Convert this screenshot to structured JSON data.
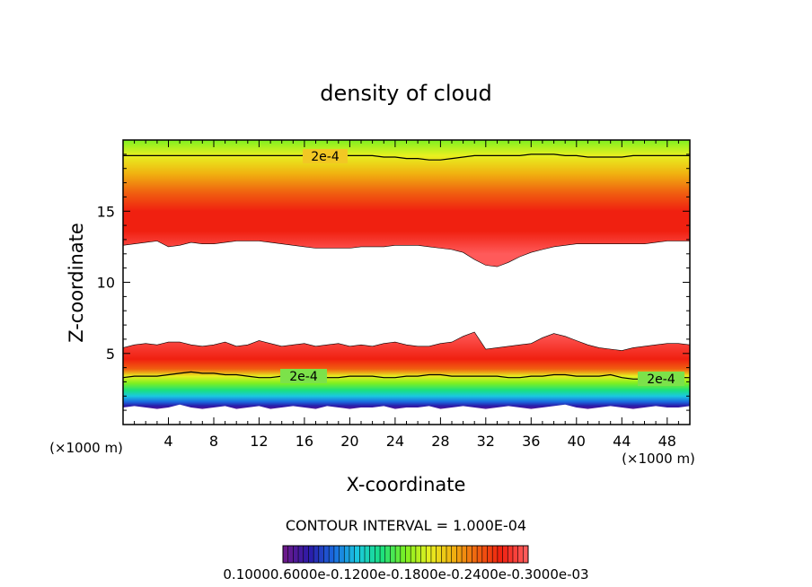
{
  "chart_data": {
    "type": "heatmap",
    "title": "density of cloud",
    "xlabel": "X-coordinate",
    "ylabel": "Z-coordinate",
    "x_unit": "(×1000 m)",
    "xlim": [
      0,
      50
    ],
    "ylim": [
      0,
      20
    ],
    "x_ticks": [
      4,
      8,
      12,
      16,
      20,
      24,
      28,
      32,
      36,
      40,
      44,
      48
    ],
    "y_ticks": [
      5,
      10,
      15
    ],
    "contour_interval_label": "CONTOUR INTERVAL = 1.000E-04",
    "contour_label": "2e-4",
    "colorbar_labels": [
      "0.1000",
      "0.6000e-4",
      "0.1200e-3",
      "0.1800e-3",
      "0.2400e-3",
      "0.3000e-3"
    ],
    "colorbar_label_text": "0.10000.6000e-0.1200e-0.1800e-0.2400e-0.3000e-03",
    "colormap": [
      "#6b1a8c",
      "#2a1aa8",
      "#1a6ae0",
      "#1ac8e0",
      "#1ae080",
      "#7ef020",
      "#e8f020",
      "#f0b010",
      "#f06010",
      "#f02010",
      "#ff5a5a"
    ],
    "upper_layer": {
      "bottom_z": [
        12.6,
        12.7,
        12.8,
        12.9,
        12.5,
        12.6,
        12.8,
        12.7,
        12.7,
        12.8,
        12.9,
        12.9,
        12.9,
        12.8,
        12.7,
        12.6,
        12.5,
        12.4,
        12.4,
        12.4,
        12.4,
        12.5,
        12.5,
        12.5,
        12.6,
        12.6,
        12.6,
        12.5,
        12.4,
        12.3,
        12.1,
        11.6,
        11.2,
        11.1,
        11.4,
        11.8,
        12.1,
        12.3,
        12.5,
        12.6,
        12.7,
        12.7,
        12.7,
        12.7,
        12.7,
        12.7,
        12.7,
        12.8,
        12.9,
        12.9,
        12.9
      ],
      "contour_z": [
        18.9,
        18.9,
        18.9,
        18.9,
        18.9,
        18.9,
        18.9,
        18.9,
        18.9,
        18.9,
        18.9,
        18.9,
        18.9,
        18.9,
        18.9,
        18.9,
        18.9,
        18.9,
        18.9,
        18.9,
        18.9,
        18.9,
        18.9,
        18.8,
        18.8,
        18.7,
        18.7,
        18.6,
        18.6,
        18.7,
        18.8,
        18.9,
        18.9,
        18.9,
        18.9,
        18.9,
        19.0,
        19.0,
        19.0,
        18.9,
        18.9,
        18.8,
        18.8,
        18.8,
        18.8,
        18.9,
        18.9,
        18.9,
        18.9,
        18.9,
        18.9
      ],
      "max_z": 15.0
    },
    "lower_layer": {
      "top_z": [
        5.4,
        5.6,
        5.7,
        5.6,
        5.8,
        5.8,
        5.6,
        5.5,
        5.6,
        5.8,
        5.5,
        5.6,
        5.9,
        5.7,
        5.5,
        5.6,
        5.7,
        5.5,
        5.6,
        5.7,
        5.5,
        5.6,
        5.5,
        5.7,
        5.8,
        5.6,
        5.5,
        5.5,
        5.7,
        5.8,
        6.2,
        6.5,
        5.3,
        5.4,
        5.5,
        5.6,
        5.7,
        6.1,
        6.4,
        6.2,
        5.9,
        5.6,
        5.4,
        5.3,
        5.2,
        5.4,
        5.5,
        5.6,
        5.7,
        5.7,
        5.6
      ],
      "bottom_z": [
        1.2,
        1.3,
        1.2,
        1.1,
        1.2,
        1.4,
        1.2,
        1.1,
        1.2,
        1.3,
        1.1,
        1.2,
        1.3,
        1.1,
        1.2,
        1.3,
        1.2,
        1.1,
        1.3,
        1.2,
        1.1,
        1.2,
        1.2,
        1.3,
        1.1,
        1.2,
        1.2,
        1.3,
        1.1,
        1.2,
        1.3,
        1.2,
        1.1,
        1.2,
        1.3,
        1.2,
        1.1,
        1.2,
        1.3,
        1.4,
        1.2,
        1.1,
        1.2,
        1.3,
        1.2,
        1.1,
        1.2,
        1.3,
        1.2,
        1.2,
        1.3
      ],
      "contour_z": [
        3.3,
        3.4,
        3.4,
        3.4,
        3.5,
        3.6,
        3.7,
        3.6,
        3.6,
        3.5,
        3.5,
        3.4,
        3.3,
        3.3,
        3.4,
        3.3,
        3.4,
        3.4,
        3.3,
        3.3,
        3.4,
        3.4,
        3.4,
        3.3,
        3.3,
        3.4,
        3.4,
        3.5,
        3.5,
        3.4,
        3.4,
        3.4,
        3.4,
        3.4,
        3.3,
        3.3,
        3.4,
        3.4,
        3.5,
        3.5,
        3.4,
        3.4,
        3.4,
        3.5,
        3.3,
        3.2,
        3.2,
        3.2,
        3.3,
        3.3,
        3.3
      ],
      "max_z": 4.6
    }
  }
}
